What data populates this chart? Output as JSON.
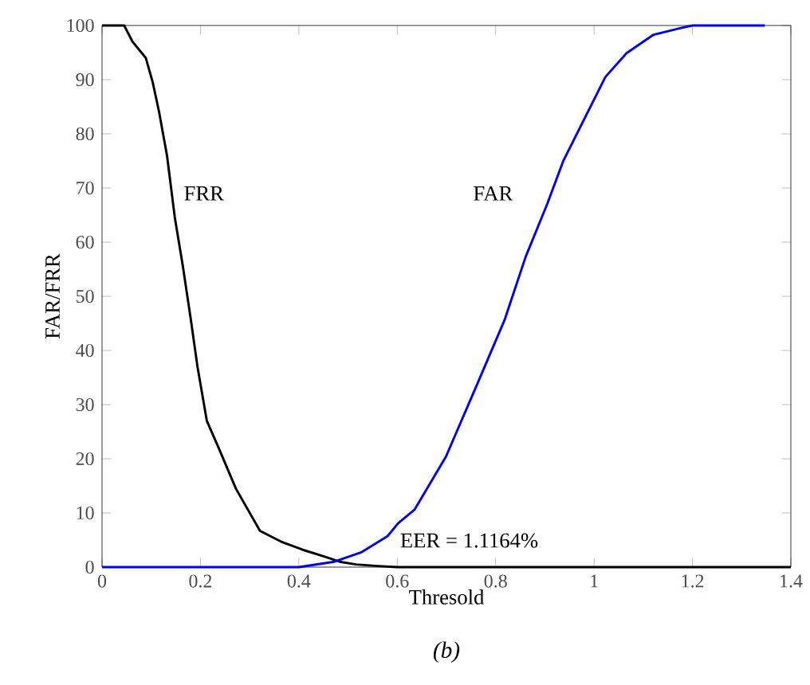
{
  "chart_data": {
    "type": "line",
    "xlabel": "Thresold",
    "ylabel": "FAR/FRR",
    "xlim": [
      0,
      1.4
    ],
    "ylim": [
      0,
      100
    ],
    "xticks": [
      0,
      0.2,
      0.4,
      0.6,
      0.8,
      1,
      1.2,
      1.4
    ],
    "yticks": [
      0,
      10,
      20,
      30,
      40,
      50,
      60,
      70,
      80,
      90,
      100
    ],
    "grid": false,
    "marker": "none",
    "line_style": "solid",
    "series": [
      {
        "name": "FRR",
        "color": "#000000",
        "x": [
          0,
          0.045,
          0.062,
          0.089,
          0.103,
          0.116,
          0.132,
          0.148,
          0.164,
          0.18,
          0.194,
          0.213,
          0.237,
          0.272,
          0.321,
          0.364,
          0.408,
          0.45,
          0.483,
          0.516,
          0.56,
          0.6,
          1.4
        ],
        "values": [
          100,
          100,
          97,
          94,
          89.5,
          84,
          76,
          64.5,
          55.7,
          46,
          37,
          27,
          22,
          14.5,
          6.7,
          4.7,
          3.2,
          2,
          1,
          0.5,
          0.2,
          0,
          0
        ]
      },
      {
        "name": "FAR",
        "color": "#0000ff",
        "x": [
          0,
          0.4,
          0.472,
          0.526,
          0.58,
          0.602,
          0.635,
          0.699,
          0.764,
          0.818,
          0.861,
          0.905,
          0.937,
          0.98,
          1.023,
          1.066,
          1.121,
          1.175,
          1.2,
          1.347
        ],
        "values": [
          0,
          0,
          1,
          2.7,
          5.7,
          8.1,
          10.6,
          20.4,
          34.1,
          45.6,
          57.3,
          67.1,
          74.9,
          82.7,
          90.5,
          94.9,
          98.3,
          99.5,
          100,
          100
        ]
      }
    ],
    "annotations": [
      "EER = 1.1164%",
      "(b)"
    ]
  }
}
